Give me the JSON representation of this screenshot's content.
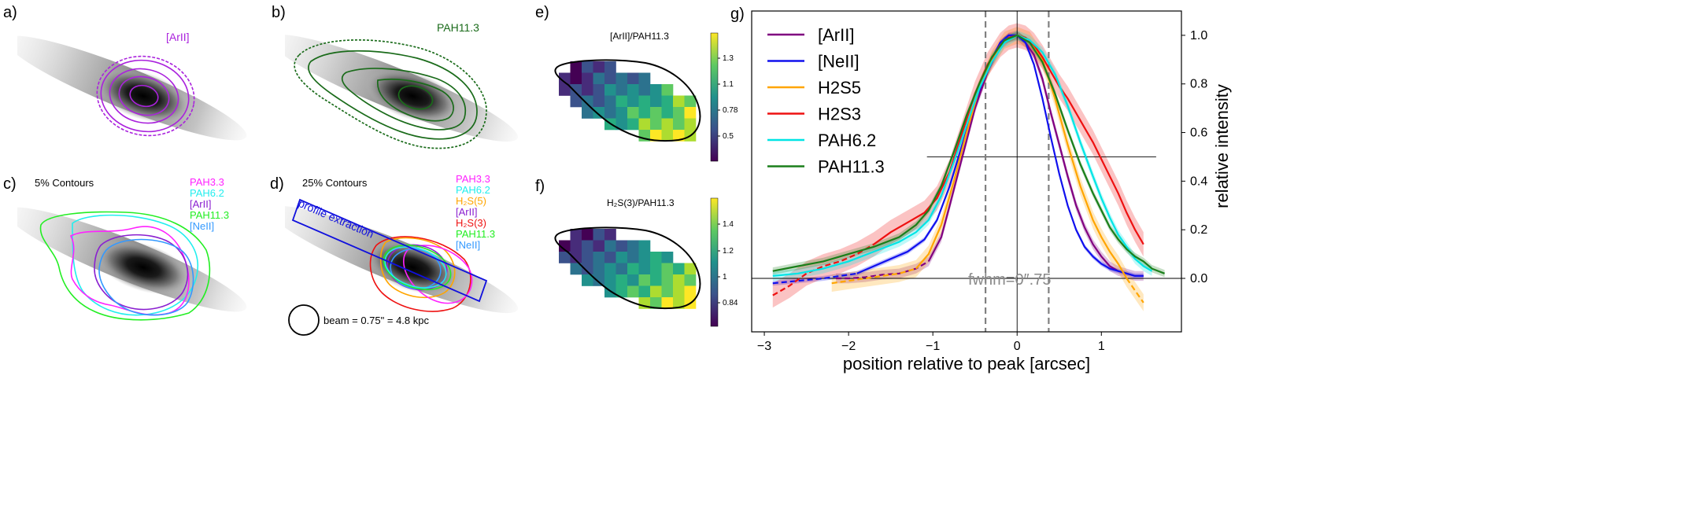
{
  "panel_labels": {
    "a": "a)",
    "b": "b)",
    "c": "c)",
    "d": "d)",
    "e": "e)",
    "f": "f)",
    "g": "g)"
  },
  "panel_a": {
    "label": "[ArII]",
    "color": "#aa22dd"
  },
  "panel_b": {
    "label": "PAH11.3",
    "color": "#1a6b1a"
  },
  "panel_c": {
    "title": "5% Contours",
    "legend": [
      {
        "name": "PAH3.3",
        "color": "#ff22ff"
      },
      {
        "name": "PAH6.2",
        "color": "#22eeee"
      },
      {
        "name": "[ArII]",
        "color": "#8a1fd0"
      },
      {
        "name": "PAH11.3",
        "color": "#22ee22"
      },
      {
        "name": "[NeII]",
        "color": "#3399ff"
      }
    ]
  },
  "panel_d": {
    "title": "25% Contours",
    "box_label": "profile extraction",
    "beam_label": "beam =  0.75\" = 4.8 kpc",
    "legend": [
      {
        "name": "PAH3.3",
        "color": "#ff22ff"
      },
      {
        "name": "PAH6.2",
        "color": "#22eeee"
      },
      {
        "name": "H₂S(5)",
        "color": "#ffa500"
      },
      {
        "name": "[ArII]",
        "color": "#8a1fd0"
      },
      {
        "name": "H₂S(3)",
        "color": "#ee1111"
      },
      {
        "name": "PAH11.3",
        "color": "#22ee22"
      },
      {
        "name": "[NeII]",
        "color": "#3399ff"
      }
    ]
  },
  "panel_e": {
    "title": "[ArII]/PAH11.3",
    "colorbar_ticks": [
      "1.3",
      "1.1",
      "0.78",
      "0.5"
    ]
  },
  "panel_f": {
    "title": "H₂S(3)/PAH11.3",
    "colorbar_ticks": [
      "1.4",
      "1.2",
      "1",
      "0.84"
    ]
  },
  "chart_data": {
    "type": "line",
    "title": "",
    "xlabel": "position relative to peak [arcsec]",
    "ylabel": "relative intensity",
    "xlim": [
      -3.15,
      1.95
    ],
    "ylim": [
      -0.22,
      1.1
    ],
    "xticks": [
      -3,
      -2,
      -1,
      0,
      1
    ],
    "yticks": [
      0.0,
      0.2,
      0.4,
      0.6,
      0.8,
      1.0
    ],
    "xtick_labels": [
      "−3",
      "−2",
      "−1",
      "0",
      "1"
    ],
    "ytick_labels": [
      "0.0",
      "0.2",
      "0.4",
      "0.6",
      "0.8",
      "1.0"
    ],
    "fwhm_label": "fwhm=0″.75",
    "fwhm_markers": [
      -0.375,
      0.375
    ],
    "halfmax_line": {
      "y": 0.5,
      "x_range": [
        -1.07,
        1.65
      ]
    },
    "legend_position": "top-left",
    "series": [
      {
        "name": "[ArII]",
        "color": "#800080",
        "dashed": [
          [
            -2.15,
            0.0
          ],
          [
            -2.0,
            0.0
          ],
          [
            -1.8,
            0.005
          ],
          [
            -1.6,
            0.015
          ],
          [
            -1.4,
            0.02
          ],
          [
            -1.2,
            0.04
          ],
          [
            -1.05,
            0.07
          ]
        ],
        "solid": [
          [
            -1.05,
            0.07
          ],
          [
            -0.9,
            0.17
          ],
          [
            -0.8,
            0.3
          ],
          [
            -0.65,
            0.5
          ],
          [
            -0.5,
            0.7
          ],
          [
            -0.35,
            0.85
          ],
          [
            -0.2,
            0.96
          ],
          [
            -0.1,
            0.99
          ],
          [
            0.0,
            1.0
          ],
          [
            0.1,
            0.97
          ],
          [
            0.2,
            0.92
          ],
          [
            0.3,
            0.82
          ],
          [
            0.4,
            0.68
          ],
          [
            0.5,
            0.55
          ],
          [
            0.6,
            0.42
          ],
          [
            0.7,
            0.3
          ],
          [
            0.8,
            0.21
          ],
          [
            0.9,
            0.14
          ],
          [
            1.0,
            0.09
          ],
          [
            1.1,
            0.05
          ],
          [
            1.2,
            0.03
          ],
          [
            1.3,
            0.02
          ],
          [
            1.4,
            0.01
          ],
          [
            1.5,
            0.01
          ]
        ],
        "band": 0.02
      },
      {
        "name": "[NeII]",
        "color": "#1010ee",
        "dashed": [
          [
            -2.9,
            -0.02
          ],
          [
            -2.6,
            -0.01
          ],
          [
            -2.3,
            0.0
          ],
          [
            -2.1,
            0.01
          ],
          [
            -1.9,
            0.02
          ]
        ],
        "solid": [
          [
            -1.9,
            0.02
          ],
          [
            -1.7,
            0.05
          ],
          [
            -1.5,
            0.08
          ],
          [
            -1.3,
            0.11
          ],
          [
            -1.1,
            0.16
          ],
          [
            -0.95,
            0.24
          ],
          [
            -0.8,
            0.38
          ],
          [
            -0.65,
            0.55
          ],
          [
            -0.5,
            0.72
          ],
          [
            -0.35,
            0.87
          ],
          [
            -0.2,
            0.97
          ],
          [
            -0.1,
            1.0
          ],
          [
            0.0,
            1.0
          ],
          [
            0.1,
            0.97
          ],
          [
            0.2,
            0.88
          ],
          [
            0.3,
            0.74
          ],
          [
            0.4,
            0.58
          ],
          [
            0.5,
            0.43
          ],
          [
            0.6,
            0.3
          ],
          [
            0.7,
            0.2
          ],
          [
            0.8,
            0.13
          ],
          [
            0.9,
            0.09
          ],
          [
            1.0,
            0.06
          ],
          [
            1.1,
            0.04
          ],
          [
            1.2,
            0.03
          ],
          [
            1.3,
            0.02
          ],
          [
            1.4,
            0.01
          ],
          [
            1.5,
            0.01
          ]
        ],
        "band": 0.01
      },
      {
        "name": "H2S5",
        "color": "#ffa500",
        "dashed": [
          [
            -2.2,
            -0.02
          ],
          [
            -2.0,
            -0.01
          ],
          [
            -1.8,
            0.0
          ],
          [
            -1.6,
            0.01
          ],
          [
            -1.4,
            0.02
          ],
          [
            -1.2,
            0.04
          ]
        ],
        "solid": [
          [
            -1.2,
            0.04
          ],
          [
            -1.05,
            0.1
          ],
          [
            -0.9,
            0.22
          ],
          [
            -0.75,
            0.4
          ],
          [
            -0.6,
            0.6
          ],
          [
            -0.45,
            0.78
          ],
          [
            -0.3,
            0.9
          ],
          [
            -0.15,
            0.98
          ],
          [
            0.0,
            1.0
          ],
          [
            0.15,
            0.98
          ],
          [
            0.3,
            0.9
          ],
          [
            0.45,
            0.74
          ],
          [
            0.6,
            0.55
          ],
          [
            0.75,
            0.38
          ],
          [
            0.9,
            0.24
          ],
          [
            1.0,
            0.17
          ],
          [
            1.1,
            0.11
          ],
          [
            1.2,
            0.06
          ],
          [
            1.3,
            0.0
          ]
        ],
        "dashed_end": [
          [
            1.3,
            0.0
          ],
          [
            1.4,
            -0.05
          ],
          [
            1.5,
            -0.1
          ]
        ],
        "band": 0.035
      },
      {
        "name": "H2S3",
        "color": "#ee1111",
        "dashed": [
          [
            -2.9,
            -0.07
          ],
          [
            -2.7,
            -0.03
          ],
          [
            -2.5,
            0.02
          ],
          [
            -2.3,
            0.05
          ],
          [
            -2.1,
            0.07
          ],
          [
            -1.9,
            0.1
          ],
          [
            -1.7,
            0.14
          ]
        ],
        "solid": [
          [
            -1.7,
            0.14
          ],
          [
            -1.5,
            0.19
          ],
          [
            -1.3,
            0.23
          ],
          [
            -1.1,
            0.27
          ],
          [
            -0.95,
            0.33
          ],
          [
            -0.8,
            0.44
          ],
          [
            -0.65,
            0.6
          ],
          [
            -0.5,
            0.76
          ],
          [
            -0.35,
            0.88
          ],
          [
            -0.2,
            0.96
          ],
          [
            -0.1,
            0.99
          ],
          [
            0.0,
            1.0
          ],
          [
            0.1,
            0.99
          ],
          [
            0.2,
            0.96
          ],
          [
            0.3,
            0.91
          ],
          [
            0.4,
            0.85
          ],
          [
            0.5,
            0.79
          ],
          [
            0.6,
            0.74
          ],
          [
            0.7,
            0.68
          ],
          [
            0.8,
            0.62
          ],
          [
            0.9,
            0.56
          ],
          [
            1.0,
            0.49
          ],
          [
            1.1,
            0.42
          ],
          [
            1.2,
            0.35
          ],
          [
            1.3,
            0.27
          ],
          [
            1.4,
            0.2
          ],
          [
            1.5,
            0.14
          ]
        ],
        "band": 0.05
      },
      {
        "name": "PAH6.2",
        "color": "#00e5e5",
        "dashed": [],
        "solid": [
          [
            -2.9,
            0.01
          ],
          [
            -2.6,
            0.02
          ],
          [
            -2.3,
            0.04
          ],
          [
            -2.0,
            0.07
          ],
          [
            -1.7,
            0.11
          ],
          [
            -1.4,
            0.15
          ],
          [
            -1.2,
            0.19
          ],
          [
            -1.05,
            0.24
          ],
          [
            -0.9,
            0.34
          ],
          [
            -0.75,
            0.48
          ],
          [
            -0.6,
            0.63
          ],
          [
            -0.45,
            0.78
          ],
          [
            -0.3,
            0.89
          ],
          [
            -0.15,
            0.97
          ],
          [
            0.0,
            1.0
          ],
          [
            0.15,
            0.98
          ],
          [
            0.3,
            0.93
          ],
          [
            0.45,
            0.84
          ],
          [
            0.6,
            0.71
          ],
          [
            0.75,
            0.56
          ],
          [
            0.9,
            0.42
          ],
          [
            1.0,
            0.33
          ],
          [
            1.1,
            0.25
          ],
          [
            1.2,
            0.18
          ],
          [
            1.3,
            0.13
          ],
          [
            1.4,
            0.08
          ],
          [
            1.5,
            0.05
          ],
          [
            1.6,
            0.03
          ]
        ],
        "band": 0.02
      },
      {
        "name": "PAH11.3",
        "color": "#1a7f1a",
        "dashed": [],
        "solid": [
          [
            -2.9,
            0.03
          ],
          [
            -2.6,
            0.05
          ],
          [
            -2.3,
            0.07
          ],
          [
            -2.0,
            0.1
          ],
          [
            -1.7,
            0.13
          ],
          [
            -1.4,
            0.17
          ],
          [
            -1.2,
            0.22
          ],
          [
            -1.05,
            0.28
          ],
          [
            -0.9,
            0.38
          ],
          [
            -0.75,
            0.52
          ],
          [
            -0.6,
            0.67
          ],
          [
            -0.45,
            0.8
          ],
          [
            -0.3,
            0.91
          ],
          [
            -0.15,
            0.98
          ],
          [
            0.0,
            1.0
          ],
          [
            0.15,
            0.97
          ],
          [
            0.3,
            0.89
          ],
          [
            0.45,
            0.76
          ],
          [
            0.6,
            0.61
          ],
          [
            0.75,
            0.47
          ],
          [
            0.9,
            0.35
          ],
          [
            1.0,
            0.28
          ],
          [
            1.1,
            0.21
          ],
          [
            1.2,
            0.16
          ],
          [
            1.3,
            0.12
          ],
          [
            1.4,
            0.09
          ],
          [
            1.5,
            0.07
          ],
          [
            1.6,
            0.04
          ],
          [
            1.75,
            0.02
          ]
        ],
        "band": 0.015
      }
    ]
  }
}
